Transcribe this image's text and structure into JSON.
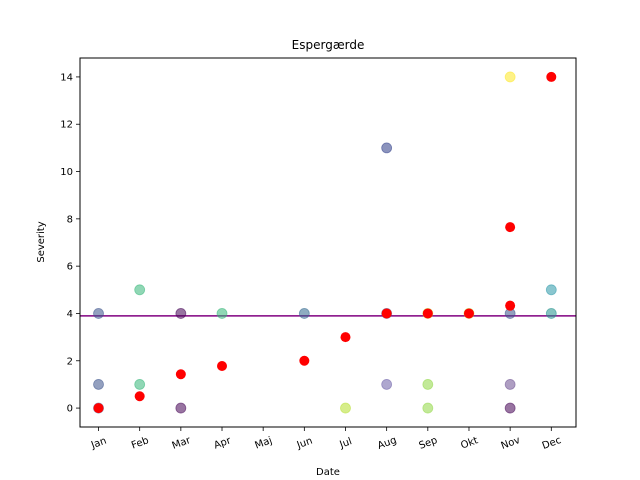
{
  "chart_data": {
    "type": "scatter",
    "title": "Espergærde",
    "xlabel": "Date",
    "ylabel": "Severity",
    "x_tick_labels": [
      "Jan",
      "Feb",
      "Mar",
      "Apr",
      "Maj",
      "Jun",
      "Jul",
      "Aug",
      "Sep",
      "Okt",
      "Nov",
      "Dec"
    ],
    "y_ticks": [
      0,
      2,
      4,
      6,
      8,
      10,
      12,
      14
    ],
    "xlim": [
      0.55,
      12.6
    ],
    "ylim": [
      -0.8,
      14.8
    ],
    "grid": false,
    "legend": "none",
    "reference_line": {
      "y": 3.9,
      "color": "#800080"
    },
    "mean_series": {
      "color": "#ff0000",
      "points": [
        {
          "x": 1,
          "y": 0
        },
        {
          "x": 2,
          "y": 0.5
        },
        {
          "x": 3,
          "y": 1.43
        },
        {
          "x": 4,
          "y": 1.78
        },
        {
          "x": 6,
          "y": 2
        },
        {
          "x": 7,
          "y": 3
        },
        {
          "x": 8,
          "y": 4
        },
        {
          "x": 9,
          "y": 4
        },
        {
          "x": 10,
          "y": 4
        },
        {
          "x": 11,
          "y": 4.33
        },
        {
          "x": 11,
          "y": 7.65
        },
        {
          "x": 12,
          "y": 14
        }
      ]
    },
    "observations": [
      {
        "x": 1,
        "y": 4,
        "color": "#3b528b"
      },
      {
        "x": 1,
        "y": 1,
        "color": "#3b528b"
      },
      {
        "x": 1,
        "y": 0,
        "color": "#3b528b"
      },
      {
        "x": 2,
        "y": 5,
        "color": "#35b779"
      },
      {
        "x": 2,
        "y": 1,
        "color": "#35b779"
      },
      {
        "x": 3,
        "y": 4,
        "color": "#440154"
      },
      {
        "x": 3,
        "y": 0,
        "color": "#440154"
      },
      {
        "x": 4,
        "y": 4,
        "color": "#35b779"
      },
      {
        "x": 6,
        "y": 4,
        "color": "#31688e"
      },
      {
        "x": 7,
        "y": 0,
        "color": "#b5de2b"
      },
      {
        "x": 8,
        "y": 11,
        "color": "#2c3a86"
      },
      {
        "x": 8,
        "y": 4,
        "color": "#3b528b"
      },
      {
        "x": 8,
        "y": 1,
        "color": "#6c5fa8"
      },
      {
        "x": 9,
        "y": 4,
        "color": "#b5de2b"
      },
      {
        "x": 9,
        "y": 1,
        "color": "#8fd744"
      },
      {
        "x": 9,
        "y": 0,
        "color": "#8fd744"
      },
      {
        "x": 10,
        "y": 4,
        "color": "#b5de2b"
      },
      {
        "x": 11,
        "y": 14,
        "color": "#fde725"
      },
      {
        "x": 11,
        "y": 4,
        "color": "#3b528b"
      },
      {
        "x": 11,
        "y": 1,
        "color": "#6c4f8f"
      },
      {
        "x": 11,
        "y": 0,
        "color": "#440154"
      },
      {
        "x": 12,
        "y": 5,
        "color": "#2a98a8"
      },
      {
        "x": 12,
        "y": 4,
        "color": "#21918c"
      }
    ]
  }
}
